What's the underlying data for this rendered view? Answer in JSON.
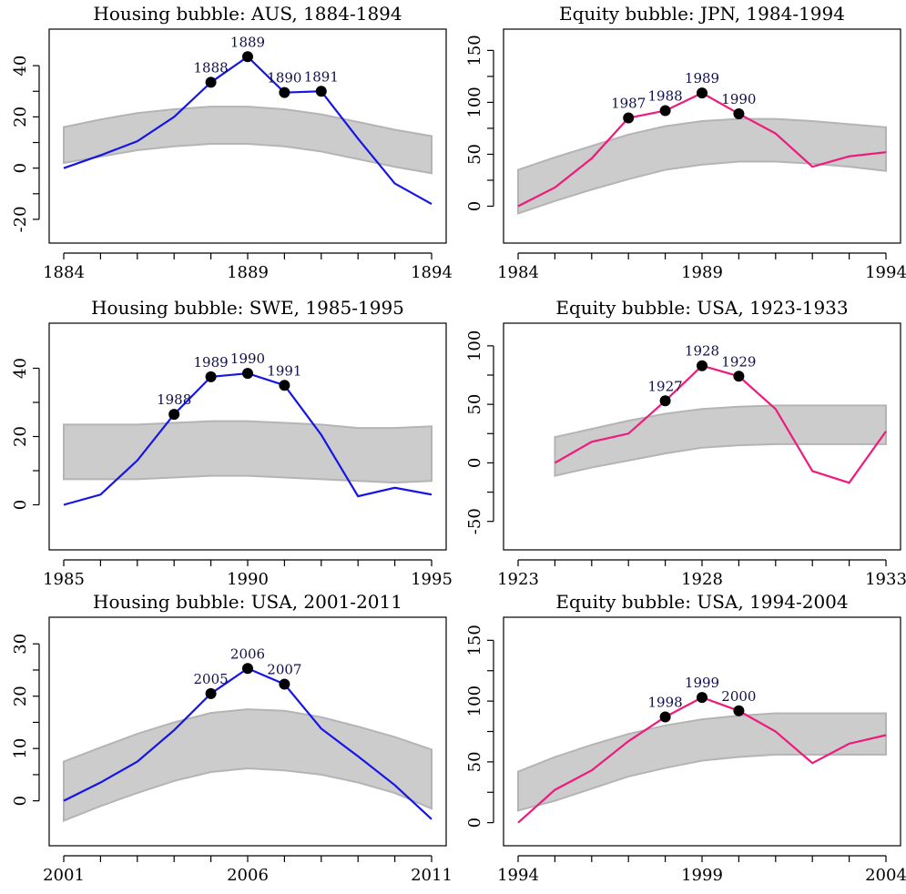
{
  "colors": {
    "housing": "#1515e6",
    "equity": "#ee1a7c",
    "band_fill": "#cccccc",
    "band_edge": "#b4b4b4",
    "marker": "#000000",
    "point_label": "#10104a"
  },
  "chart_data": [
    {
      "type": "line",
      "title": "Housing bubble: AUS, 1884-1894",
      "series_color": "housing",
      "xlim": [
        1884,
        1894
      ],
      "ylim": [
        -25,
        50
      ],
      "xticks": [
        1884,
        1889,
        1894
      ],
      "xtick_labels": [
        "1884",
        "1889",
        "1894"
      ],
      "yticks": [
        -20,
        0,
        20,
        40
      ],
      "ytick_labels": [
        "-20",
        "0",
        "20",
        "40"
      ],
      "series": [
        {
          "x": [
            1884,
            1885,
            1886,
            1887,
            1888,
            1889,
            1890,
            1891,
            1892,
            1893,
            1894
          ],
          "values": [
            0,
            5,
            10.5,
            20,
            33.5,
            43.5,
            29.5,
            30,
            11.5,
            -6,
            -14
          ]
        }
      ],
      "band": {
        "x": [
          1884,
          1885,
          1886,
          1887,
          1888,
          1889,
          1890,
          1891,
          1892,
          1893,
          1894
        ],
        "lower": [
          2,
          4.5,
          7,
          8.5,
          9.5,
          9.5,
          8.5,
          6.5,
          3.5,
          0.5,
          -2
        ],
        "upper": [
          16,
          19,
          21.5,
          23,
          24,
          24,
          23,
          21,
          18,
          15,
          12.5
        ]
      },
      "highlighted_points": [
        {
          "x": 1888,
          "y": 33.5,
          "label": "1888"
        },
        {
          "x": 1889,
          "y": 43.5,
          "label": "1889"
        },
        {
          "x": 1890,
          "y": 29.5,
          "label": "1890"
        },
        {
          "x": 1891,
          "y": 30,
          "label": "1891"
        }
      ]
    },
    {
      "type": "line",
      "title": "Equity bubble: JPN, 1984-1994",
      "series_color": "equity",
      "xlim": [
        1984,
        1994
      ],
      "ylim": [
        -25,
        160
      ],
      "xticks": [
        1984,
        1989,
        1994
      ],
      "xtick_labels": [
        "1984",
        "1989",
        "1994"
      ],
      "yticks": [
        0,
        50,
        100,
        150
      ],
      "ytick_labels": [
        "0",
        "50",
        "100",
        "150"
      ],
      "series": [
        {
          "x": [
            1984,
            1985,
            1986,
            1987,
            1988,
            1989,
            1990,
            1991,
            1992,
            1993,
            1994
          ],
          "values": [
            0,
            18,
            46,
            85,
            92,
            109,
            89,
            70,
            38,
            48,
            52
          ]
        }
      ],
      "band": {
        "x": [
          1984,
          1985,
          1986,
          1987,
          1988,
          1989,
          1990,
          1991,
          1992,
          1993,
          1994
        ],
        "lower": [
          -7,
          5,
          16,
          26,
          35,
          40,
          43,
          43,
          41,
          38,
          34
        ],
        "upper": [
          35,
          47,
          58,
          69,
          77,
          82,
          84,
          84,
          82,
          79,
          76
        ]
      },
      "highlighted_points": [
        {
          "x": 1987,
          "y": 85,
          "label": "1987"
        },
        {
          "x": 1988,
          "y": 92,
          "label": "1988"
        },
        {
          "x": 1989,
          "y": 109,
          "label": "1989"
        },
        {
          "x": 1990,
          "y": 89,
          "label": "1990"
        }
      ]
    },
    {
      "type": "line",
      "title": "Housing bubble: SWE, 1985-1995",
      "series_color": "housing",
      "xlim": [
        1985,
        1995
      ],
      "ylim": [
        -10,
        50
      ],
      "xticks": [
        1985,
        1990,
        1995
      ],
      "xtick_labels": [
        "1985",
        "1990",
        "1995"
      ],
      "yticks": [
        0,
        20,
        40
      ],
      "ytick_labels": [
        "0",
        "20",
        "40"
      ],
      "series": [
        {
          "x": [
            1985,
            1986,
            1987,
            1988,
            1989,
            1990,
            1991,
            1992,
            1993,
            1994,
            1995
          ],
          "values": [
            0,
            3,
            13,
            26.5,
            37.5,
            38.5,
            35,
            20.5,
            2.5,
            5,
            3
          ]
        }
      ],
      "band": {
        "x": [
          1985,
          1986,
          1987,
          1988,
          1989,
          1990,
          1991,
          1992,
          1993,
          1994,
          1995
        ],
        "lower": [
          7.5,
          7.5,
          7.5,
          8,
          8.5,
          8.5,
          8,
          7.5,
          7,
          6.5,
          7
        ],
        "upper": [
          23.5,
          23.5,
          23.5,
          24,
          24.5,
          24.5,
          24,
          23.5,
          22.5,
          22.5,
          23
        ]
      },
      "highlighted_points": [
        {
          "x": 1988,
          "y": 26.5,
          "label": "1988"
        },
        {
          "x": 1989,
          "y": 37.5,
          "label": "1989"
        },
        {
          "x": 1990,
          "y": 38.5,
          "label": "1990"
        },
        {
          "x": 1991,
          "y": 35,
          "label": "1991"
        }
      ]
    },
    {
      "type": "line",
      "title": "Equity bubble: USA, 1923-1933",
      "series_color": "equity",
      "xlim": [
        1923,
        1933
      ],
      "ylim": [
        -65,
        110
      ],
      "xticks": [
        1923,
        1928,
        1933
      ],
      "xtick_labels": [
        "1923",
        "1928",
        "1933"
      ],
      "yticks": [
        -50,
        0,
        50,
        100
      ],
      "ytick_labels": [
        "-50",
        "0",
        "50",
        "100"
      ],
      "series": [
        {
          "x": [
            1924,
            1925,
            1926,
            1927,
            1928,
            1929,
            1930,
            1931,
            1932,
            1933
          ],
          "values": [
            0,
            18,
            25,
            53,
            83,
            74,
            46,
            -7,
            -17,
            27
          ]
        }
      ],
      "band": {
        "x": [
          1924,
          1925,
          1926,
          1927,
          1928,
          1929,
          1930,
          1931,
          1932,
          1933
        ],
        "lower": [
          -11,
          -4,
          2,
          8,
          13,
          15,
          16,
          16,
          16,
          16
        ],
        "upper": [
          22,
          29,
          36,
          42,
          46,
          48,
          49,
          49,
          49,
          49
        ]
      },
      "highlighted_points": [
        {
          "x": 1927,
          "y": 53,
          "label": "1927"
        },
        {
          "x": 1928,
          "y": 83,
          "label": "1928"
        },
        {
          "x": 1929,
          "y": 74,
          "label": "1929"
        }
      ]
    },
    {
      "type": "line",
      "title": "Housing bubble: USA, 2001-2011",
      "series_color": "housing",
      "xlim": [
        2001,
        2011
      ],
      "ylim": [
        -6.5,
        33
      ],
      "xticks": [
        2001,
        2006,
        2011
      ],
      "xtick_labels": [
        "2001",
        "2006",
        "2011"
      ],
      "yticks": [
        0,
        10,
        20,
        30
      ],
      "ytick_labels": [
        "0",
        "10",
        "20",
        "30"
      ],
      "series": [
        {
          "x": [
            2001,
            2002,
            2003,
            2004,
            2005,
            2006,
            2007,
            2008,
            2009,
            2010,
            2011
          ],
          "values": [
            0,
            3.5,
            7.5,
            13.5,
            20.5,
            25.3,
            22.3,
            13.8,
            8.5,
            3,
            -3.5
          ]
        }
      ],
      "band": {
        "x": [
          2001,
          2002,
          2003,
          2004,
          2005,
          2006,
          2007,
          2008,
          2009,
          2010,
          2011
        ],
        "lower": [
          -3.8,
          -1,
          1.5,
          3.8,
          5.5,
          6.2,
          5.8,
          5,
          3.5,
          1.5,
          -1.5
        ],
        "upper": [
          7.5,
          10.2,
          12.8,
          15,
          16.8,
          17.5,
          17.2,
          16,
          14.2,
          12.2,
          9.8
        ]
      },
      "highlighted_points": [
        {
          "x": 2005,
          "y": 20.5,
          "label": "2005"
        },
        {
          "x": 2006,
          "y": 25.3,
          "label": "2006"
        },
        {
          "x": 2007,
          "y": 22.3,
          "label": "2007"
        }
      ]
    },
    {
      "type": "line",
      "title": "Equity bubble: USA, 1994-2004",
      "series_color": "equity",
      "xlim": [
        1994,
        2004
      ],
      "ylim": [
        -10,
        160
      ],
      "xticks": [
        1994,
        1999,
        2004
      ],
      "xtick_labels": [
        "1994",
        "1999",
        "2004"
      ],
      "yticks": [
        0,
        50,
        100,
        150
      ],
      "ytick_labels": [
        "0",
        "50",
        "100",
        "150"
      ],
      "series": [
        {
          "x": [
            1994,
            1995,
            1996,
            1997,
            1998,
            1999,
            2000,
            2001,
            2002,
            2003,
            2004
          ],
          "values": [
            0,
            27,
            43,
            67,
            87,
            103,
            92,
            75,
            49,
            65,
            72
          ]
        }
      ],
      "band": {
        "x": [
          1994,
          1995,
          1996,
          1997,
          1998,
          1999,
          2000,
          2001,
          2002,
          2003,
          2004
        ],
        "lower": [
          10,
          18,
          28,
          38,
          45,
          51,
          54,
          56,
          56,
          56,
          56
        ],
        "upper": [
          42,
          54,
          64,
          73,
          80,
          85,
          88,
          90,
          90,
          90,
          90
        ]
      },
      "highlighted_points": [
        {
          "x": 1998,
          "y": 87,
          "label": "1998"
        },
        {
          "x": 1999,
          "y": 103,
          "label": "1999"
        },
        {
          "x": 2000,
          "y": 92,
          "label": "2000"
        }
      ]
    }
  ]
}
